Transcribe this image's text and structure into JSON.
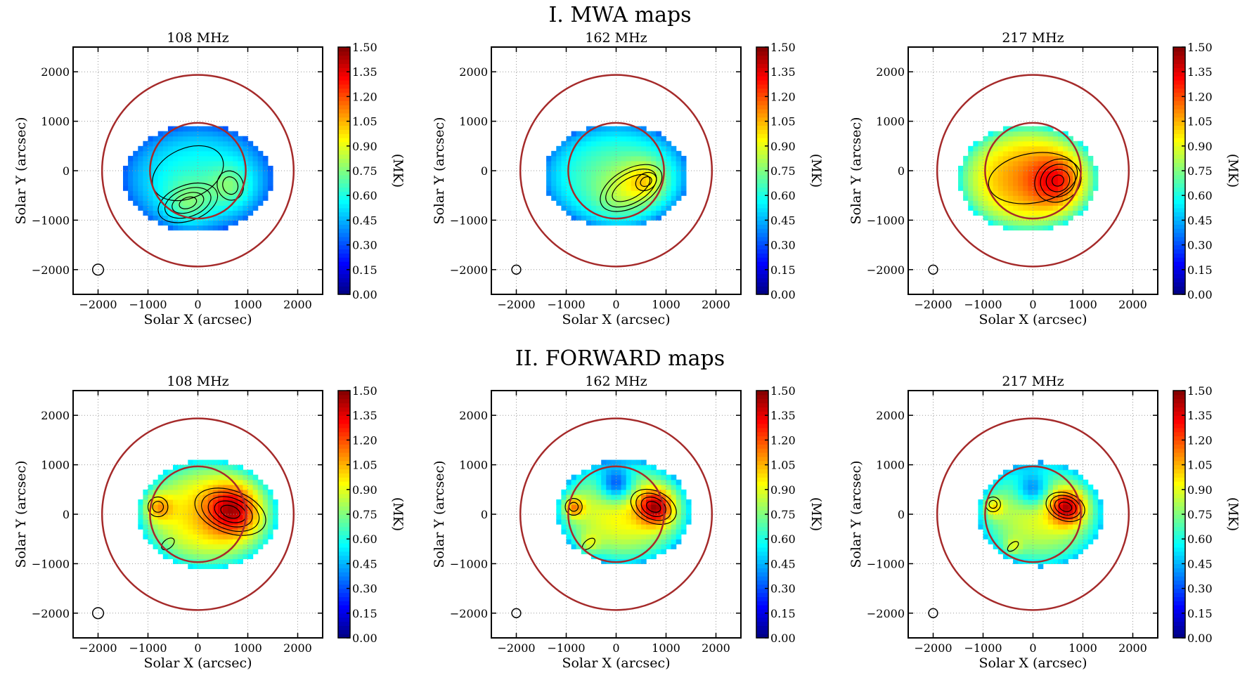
{
  "section_titles": [
    "I. MWA maps",
    "II. FORWARD maps"
  ],
  "chart_data": [
    {
      "type": "heatmap",
      "row": 0,
      "col": 0,
      "title": "108 MHz",
      "xlabel": "Solar X (arcsec)",
      "ylabel": "Solar Y (arcsec)",
      "xlim": [
        -2500,
        2500
      ],
      "ylim": [
        -2500,
        2500
      ],
      "xticks": [
        -2000,
        -1000,
        0,
        1000,
        2000
      ],
      "yticks": [
        -2000,
        -1000,
        0,
        1000,
        2000
      ],
      "tick_labels": [
        "−2000",
        "−1000",
        "0",
        "1000",
        "2000"
      ],
      "colorbar": {
        "label": "(MK)",
        "range": [
          0,
          1.5
        ],
        "ticks": [
          "0.00",
          "0.15",
          "0.30",
          "0.45",
          "0.60",
          "0.75",
          "0.90",
          "1.05",
          "1.20",
          "1.35",
          "1.50"
        ]
      },
      "solar_disk_radius": 960,
      "outer_circle_radius": 1920,
      "beam": {
        "x": -2000,
        "y": -2000,
        "r": 110
      },
      "emission": {
        "cx": 0,
        "cy": -150,
        "rx": 1500,
        "ry": 1080,
        "edge_MK": 0.3,
        "center_MK": 0.6,
        "peaks": [
          {
            "x": -200,
            "y": -650,
            "amp": 0.2,
            "s": 330
          },
          {
            "x": 650,
            "y": -300,
            "amp": 0.2,
            "s": 300
          }
        ]
      },
      "contours": [
        {
          "x": -200,
          "y": -650,
          "rx": [
            180,
            330,
            480,
            620
          ],
          "ry": [
            110,
            190,
            280,
            360
          ],
          "rot": -20
        },
        {
          "x": 650,
          "y": -300,
          "rx": [
            150,
            260
          ],
          "ry": [
            180,
            300
          ],
          "rot": -20
        },
        {
          "x": -200,
          "y": -50,
          "rx": [
            750
          ],
          "ry": [
            500
          ],
          "rot": -25
        }
      ]
    },
    {
      "type": "heatmap",
      "row": 0,
      "col": 1,
      "title": "162 MHz",
      "xlabel": "Solar X (arcsec)",
      "ylabel": "Solar Y (arcsec)",
      "xlim": [
        -2500,
        2500
      ],
      "ylim": [
        -2500,
        2500
      ],
      "xticks": [
        -2000,
        -1000,
        0,
        1000,
        2000
      ],
      "yticks": [
        -2000,
        -1000,
        0,
        1000,
        2000
      ],
      "tick_labels": [
        "−2000",
        "−1000",
        "0",
        "1000",
        "2000"
      ],
      "colorbar": {
        "label": "(MK)",
        "range": [
          0,
          1.5
        ],
        "ticks": [
          "0.00",
          "0.15",
          "0.30",
          "0.45",
          "0.60",
          "0.75",
          "0.90",
          "1.05",
          "1.20",
          "1.35",
          "1.50"
        ]
      },
      "solar_disk_radius": 960,
      "outer_circle_radius": 1920,
      "beam": {
        "x": -2000,
        "y": -2000,
        "r": 90
      },
      "emission": {
        "cx": 0,
        "cy": -100,
        "rx": 1450,
        "ry": 1050,
        "edge_MK": 0.35,
        "center_MK": 0.7,
        "peaks": [
          {
            "x": 600,
            "y": -200,
            "amp": 0.3,
            "s": 300
          },
          {
            "x": 100,
            "y": -500,
            "amp": 0.15,
            "s": 400
          }
        ]
      },
      "contours": [
        {
          "x": 600,
          "y": -220,
          "rx": [
            120,
            220
          ],
          "ry": [
            90,
            170
          ],
          "rot": -30
        },
        {
          "x": 300,
          "y": -350,
          "rx": [
            420,
            560,
            680
          ],
          "ry": [
            200,
            300,
            380
          ],
          "rot": -30
        }
      ]
    },
    {
      "type": "heatmap",
      "row": 0,
      "col": 2,
      "title": "217 MHz",
      "xlabel": "Solar X (arcsec)",
      "ylabel": "Solar Y (arcsec)",
      "xlim": [
        -2500,
        2500
      ],
      "ylim": [
        -2500,
        2500
      ],
      "xticks": [
        -2000,
        -1000,
        0,
        1000,
        2000
      ],
      "yticks": [
        -2000,
        -1000,
        0,
        1000,
        2000
      ],
      "tick_labels": [
        "−2000",
        "−1000",
        "0",
        "1000",
        "2000"
      ],
      "colorbar": {
        "label": "(MK)",
        "range": [
          0,
          1.5
        ],
        "ticks": [
          "0.00",
          "0.15",
          "0.30",
          "0.45",
          "0.60",
          "0.75",
          "0.90",
          "1.05",
          "1.20",
          "1.35",
          "1.50"
        ]
      },
      "solar_disk_radius": 960,
      "outer_circle_radius": 1920,
      "beam": {
        "x": -2000,
        "y": -2000,
        "r": 90
      },
      "emission": {
        "cx": -100,
        "cy": -150,
        "rx": 1400,
        "ry": 1080,
        "edge_MK": 0.55,
        "center_MK": 1.1,
        "peaks": [
          {
            "x": 450,
            "y": -200,
            "amp": 0.3,
            "s": 350
          }
        ]
      },
      "contours": [
        {
          "x": 500,
          "y": -200,
          "rx": [
            120,
            240,
            360,
            480
          ],
          "ry": [
            110,
            220,
            320,
            420
          ],
          "rot": -30
        },
        {
          "x": 0,
          "y": -150,
          "rx": [
            900
          ],
          "ry": [
            500
          ],
          "rot": -10
        }
      ]
    },
    {
      "type": "heatmap",
      "row": 1,
      "col": 0,
      "title": "108 MHz",
      "xlabel": "Solar X (arcsec)",
      "ylabel": "Solar Y (arcsec)",
      "xlim": [
        -2500,
        2500
      ],
      "ylim": [
        -2500,
        2500
      ],
      "xticks": [
        -2000,
        -1000,
        0,
        1000,
        2000
      ],
      "yticks": [
        -2000,
        -1000,
        0,
        1000,
        2000
      ],
      "tick_labels": [
        "−2000",
        "−1000",
        "0",
        "1000",
        "2000"
      ],
      "colorbar": {
        "label": "(MK)",
        "range": [
          0,
          1.5
        ],
        "ticks": [
          "0.00",
          "0.15",
          "0.30",
          "0.45",
          "0.60",
          "0.75",
          "0.90",
          "1.05",
          "1.20",
          "1.35",
          "1.50"
        ]
      },
      "solar_disk_radius": 960,
      "outer_circle_radius": 1920,
      "beam": {
        "x": -2000,
        "y": -2000,
        "r": 110
      },
      "emission": {
        "cx": 200,
        "cy": 0,
        "rx": 1400,
        "ry": 1100,
        "edge_MK": 0.5,
        "center_MK": 1.0,
        "peaks": [
          {
            "x": 700,
            "y": 100,
            "amp": 0.5,
            "s": 350
          },
          {
            "x": -800,
            "y": 150,
            "amp": 0.3,
            "s": 200
          }
        ]
      },
      "contours": [
        {
          "x": 650,
          "y": 50,
          "rx": [
            200,
            330,
            460,
            600,
            740
          ],
          "ry": [
            120,
            200,
            280,
            360,
            430
          ],
          "rot": 20
        },
        {
          "x": -800,
          "y": 150,
          "rx": [
            110,
            200
          ],
          "ry": [
            110,
            200
          ],
          "rot": 0
        },
        {
          "x": -600,
          "y": -600,
          "rx": [
            150
          ],
          "ry": [
            90
          ],
          "rot": -40
        }
      ]
    },
    {
      "type": "heatmap",
      "row": 1,
      "col": 1,
      "title": "162 MHz",
      "xlabel": "Solar X (arcsec)",
      "ylabel": "Solar Y (arcsec)",
      "xlim": [
        -2500,
        2500
      ],
      "ylim": [
        -2500,
        2500
      ],
      "xticks": [
        -2000,
        -1000,
        0,
        1000,
        2000
      ],
      "yticks": [
        -2000,
        -1000,
        0,
        1000,
        2000
      ],
      "tick_labels": [
        "−2000",
        "−1000",
        "0",
        "1000",
        "2000"
      ],
      "colorbar": {
        "label": "(MK)",
        "range": [
          0,
          1.5
        ],
        "ticks": [
          "0.00",
          "0.15",
          "0.30",
          "0.45",
          "0.60",
          "0.75",
          "0.90",
          "1.05",
          "1.20",
          "1.35",
          "1.50"
        ]
      },
      "solar_disk_radius": 960,
      "outer_circle_radius": 1920,
      "beam": {
        "x": -2000,
        "y": -2000,
        "r": 90
      },
      "emission": {
        "cx": 150,
        "cy": 50,
        "rx": 1350,
        "ry": 1050,
        "edge_MK": 0.45,
        "center_MK": 0.95,
        "peaks": [
          {
            "x": 800,
            "y": 150,
            "amp": 0.6,
            "s": 250
          },
          {
            "x": -850,
            "y": 150,
            "amp": 0.4,
            "s": 150
          },
          {
            "x": -550,
            "y": -600,
            "amp": 0.2,
            "s": 150
          },
          {
            "x": 0,
            "y": 600,
            "amp": -0.5,
            "s": 250
          }
        ]
      },
      "contours": [
        {
          "x": 750,
          "y": 150,
          "rx": [
            150,
            260,
            370,
            480
          ],
          "ry": [
            100,
            180,
            250,
            320
          ],
          "rot": 25
        },
        {
          "x": -850,
          "y": 150,
          "rx": [
            90,
            170
          ],
          "ry": [
            90,
            170
          ],
          "rot": 0
        },
        {
          "x": -550,
          "y": -600,
          "rx": [
            150
          ],
          "ry": [
            80
          ],
          "rot": -40
        }
      ]
    },
    {
      "type": "heatmap",
      "row": 1,
      "col": 2,
      "title": "217 MHz",
      "xlabel": "Solar X (arcsec)",
      "ylabel": "Solar Y (arcsec)",
      "xlim": [
        -2500,
        2500
      ],
      "ylim": [
        -2500,
        2500
      ],
      "xticks": [
        -2000,
        -1000,
        0,
        1000,
        2000
      ],
      "yticks": [
        -2000,
        -1000,
        0,
        1000,
        2000
      ],
      "tick_labels": [
        "−2000",
        "−1000",
        "0",
        "1000",
        "2000"
      ],
      "colorbar": {
        "label": "(MK)",
        "range": [
          0,
          1.5
        ],
        "ticks": [
          "0.00",
          "0.15",
          "0.30",
          "0.45",
          "0.60",
          "0.75",
          "0.90",
          "1.05",
          "1.20",
          "1.35",
          "1.50"
        ]
      },
      "solar_disk_radius": 960,
      "outer_circle_radius": 1920,
      "beam": {
        "x": -2000,
        "y": -2000,
        "r": 90
      },
      "emission": {
        "cx": 150,
        "cy": 0,
        "rx": 1250,
        "ry": 1050,
        "edge_MK": 0.45,
        "center_MK": 0.9,
        "peaks": [
          {
            "x": 700,
            "y": 150,
            "amp": 0.6,
            "s": 250
          },
          {
            "x": -800,
            "y": 150,
            "amp": 0.3,
            "s": 150
          },
          {
            "x": -400,
            "y": -650,
            "amp": 0.2,
            "s": 120
          },
          {
            "x": 0,
            "y": 500,
            "amp": -0.4,
            "s": 250
          }
        ]
      },
      "contours": [
        {
          "x": 650,
          "y": 150,
          "rx": [
            130,
            220,
            310,
            400
          ],
          "ry": [
            90,
            160,
            220,
            280
          ],
          "rot": 20
        },
        {
          "x": -800,
          "y": 200,
          "rx": [
            80,
            150
          ],
          "ry": [
            80,
            150
          ],
          "rot": 0
        },
        {
          "x": -400,
          "y": -650,
          "rx": [
            130
          ],
          "ry": [
            70
          ],
          "rot": -40
        }
      ]
    }
  ]
}
